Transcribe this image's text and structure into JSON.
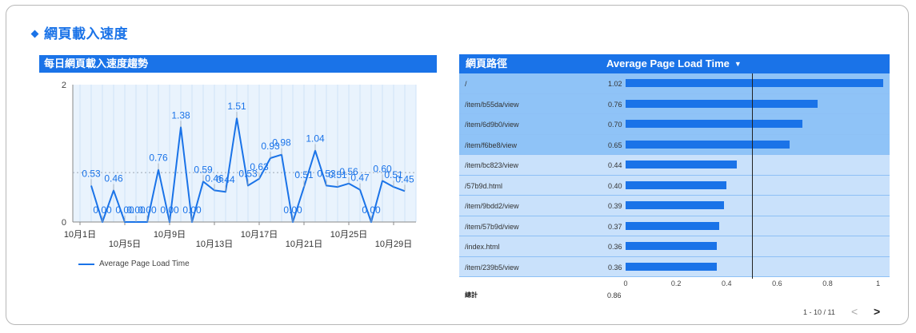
{
  "section_title": "網頁載入速度",
  "line_chart_title": "每日網頁載入速度趨勢",
  "chart_data": [
    {
      "type": "line",
      "title": "每日網頁載入速度趨勢",
      "x": [
        "10月1日",
        "10月2日",
        "10月3日",
        "10月4日",
        "10月5日",
        "10月6日",
        "10月7日",
        "10月8日",
        "10月9日",
        "10月10日",
        "10月11日",
        "10月12日",
        "10月13日",
        "10月14日",
        "10月15日",
        "10月16日",
        "10月17日",
        "10月18日",
        "10月19日",
        "10月20日",
        "10月21日",
        "10月22日",
        "10月23日",
        "10月24日",
        "10月25日",
        "10月26日",
        "10月27日",
        "10月28日",
        "10月29日",
        "10月30日",
        "10月31日"
      ],
      "x_ticks": [
        "10月1日",
        "10月5日",
        "10月9日",
        "10月13日",
        "10月17日",
        "10月21日",
        "10月25日",
        "10月29日"
      ],
      "series": [
        {
          "name": "Average Page Load Time",
          "values": [
            null,
            0.53,
            0.0,
            0.46,
            0.0,
            0.0,
            0.0,
            0.76,
            0.0,
            1.38,
            0.0,
            0.59,
            0.46,
            0.44,
            1.51,
            0.53,
            0.63,
            0.93,
            0.98,
            0.0,
            0.51,
            1.04,
            0.53,
            0.51,
            0.56,
            0.47,
            0.0,
            0.6,
            0.51,
            0.45,
            null
          ]
        }
      ],
      "data_labels": [
        "0.53",
        "0.00",
        "0.46",
        "0.00",
        "0.00",
        "0.00",
        "0.76",
        "0.00",
        "1.38",
        "0.00",
        "0.59",
        "0.46",
        "0.44",
        "1.51",
        "0.53",
        "0.63",
        "0.93",
        "0.98",
        "0.00",
        "0.51",
        "1.04",
        "0.53",
        "0.51",
        "0.56",
        "0.47",
        "0.00",
        "0.60",
        "0.51",
        "0.45"
      ],
      "y_ticks": [
        "0",
        "2"
      ],
      "ylim": [
        0,
        2
      ],
      "reference_line": 0.72,
      "legend": "Average Page Load Time",
      "legend_position": "bottom-left"
    },
    {
      "type": "bar",
      "orientation": "horizontal",
      "categories": [
        "/",
        "/item/b55da/view",
        "/item/6d9b0/view",
        "/item/f6be8/view",
        "/item/bc823/view",
        "/57b9d.html",
        "/item/9bdd2/view",
        "/item/57b9d/view",
        "/index.html",
        "/item/239b5/view"
      ],
      "values": [
        1.02,
        0.76,
        0.7,
        0.65,
        0.44,
        0.4,
        0.39,
        0.37,
        0.36,
        0.36
      ],
      "xlim": [
        0,
        1.02
      ],
      "x_ticks": [
        "0",
        "0.2",
        "0.4",
        "0.6",
        "0.8",
        "1"
      ],
      "reference_line": 0.5
    }
  ],
  "table": {
    "col_path": "網頁路徑",
    "col_metric": "Average Page Load Time",
    "sort_icon": "caret-down-icon",
    "rows": [
      {
        "path": "/",
        "value": "1.02"
      },
      {
        "path": "/item/b55da/view",
        "value": "0.76"
      },
      {
        "path": "/item/6d9b0/view",
        "value": "0.70"
      },
      {
        "path": "/item/f6be8/view",
        "value": "0.65"
      },
      {
        "path": "/item/bc823/view",
        "value": "0.44"
      },
      {
        "path": "/57b9d.html",
        "value": "0.40"
      },
      {
        "path": "/item/9bdd2/view",
        "value": "0.39"
      },
      {
        "path": "/item/57b9d/view",
        "value": "0.37"
      },
      {
        "path": "/index.html",
        "value": "0.36"
      },
      {
        "path": "/item/239b5/view",
        "value": "0.36"
      }
    ],
    "total_label": "總計",
    "total_value": "0.86",
    "pager_text": "1 - 10 / 11",
    "prev_icon": "chevron-left-icon",
    "next_icon": "chevron-right-icon"
  },
  "colors": {
    "accent": "#1a73e8",
    "row_highlight": "#8fc3f7",
    "row_normal": "#c9e1fb"
  }
}
